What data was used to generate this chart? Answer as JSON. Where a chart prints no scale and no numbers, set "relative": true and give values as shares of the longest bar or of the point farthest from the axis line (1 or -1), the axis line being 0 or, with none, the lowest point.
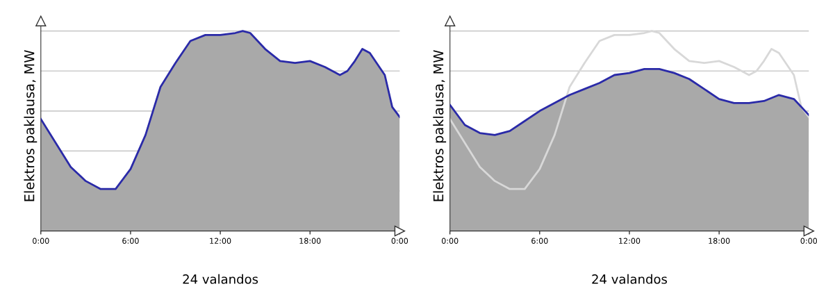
{
  "chart_data": [
    {
      "type": "area",
      "relative": true,
      "xlabel": "24 valandos",
      "ylabel": "Elektros paklausa, MW",
      "xlim": [
        0,
        24
      ],
      "xticks": [
        {
          "value": 0,
          "label": "0:00"
        },
        {
          "value": 6,
          "label": "6:00"
        },
        {
          "value": 12,
          "label": "12:00"
        },
        {
          "value": 18,
          "label": "18:00"
        },
        {
          "value": 24,
          "label": "0:00"
        }
      ],
      "grid": "y",
      "tick_labels": "x",
      "series": [
        {
          "color": "#2a2aa8",
          "x": [
            0,
            1,
            2,
            3,
            4,
            5,
            6,
            7,
            8,
            9,
            10,
            11,
            12,
            13,
            13.5,
            14,
            15,
            16,
            17,
            18,
            19,
            20,
            20.5,
            21,
            21.5,
            22,
            23,
            23.5,
            24
          ],
          "values": [
            0.56,
            0.44,
            0.32,
            0.25,
            0.21,
            0.21,
            0.31,
            0.48,
            0.72,
            0.84,
            0.95,
            0.98,
            0.98,
            0.99,
            1,
            0.99,
            0.91,
            0.85,
            0.84,
            0.85,
            0.82,
            0.78,
            0.8,
            0.85,
            0.91,
            0.89,
            0.78,
            0.62,
            0.57
          ]
        }
      ]
    },
    {
      "type": "area",
      "relative": true,
      "xlabel": "24 valandos",
      "ylabel": "Elektros paklausa, MW",
      "xlim": [
        0,
        24
      ],
      "xticks": [
        {
          "value": 0,
          "label": "0:00"
        },
        {
          "value": 6,
          "label": "6:00"
        },
        {
          "value": 12,
          "label": "12:00"
        },
        {
          "value": 18,
          "label": "18:00"
        },
        {
          "value": 24,
          "label": "0:00"
        }
      ],
      "grid": "y",
      "tick_labels": "x",
      "series": [
        {
          "color": "#2a2aa8",
          "x": [
            0,
            1,
            2,
            3,
            4,
            5,
            6,
            7,
            8,
            9,
            10,
            11,
            12,
            13,
            14,
            15,
            16,
            17,
            18,
            19,
            20,
            21,
            22,
            23,
            24
          ],
          "values": [
            0.63,
            0.53,
            0.49,
            0.48,
            0.5,
            0.55,
            0.6,
            0.64,
            0.68,
            0.71,
            0.74,
            0.78,
            0.79,
            0.81,
            0.81,
            0.79,
            0.76,
            0.71,
            0.66,
            0.64,
            0.64,
            0.65,
            0.68,
            0.66,
            0.58
          ]
        },
        {
          "type": "line",
          "color": "#d8d8d8",
          "x": [
            0,
            1,
            2,
            3,
            4,
            5,
            6,
            7,
            8,
            9,
            10,
            11,
            12,
            13,
            13.5,
            14,
            15,
            16,
            17,
            18,
            19,
            20,
            20.5,
            21,
            21.5,
            22,
            23,
            23.5,
            24
          ],
          "values": [
            0.56,
            0.44,
            0.32,
            0.25,
            0.21,
            0.21,
            0.31,
            0.48,
            0.72,
            0.84,
            0.95,
            0.98,
            0.98,
            0.99,
            1,
            0.99,
            0.91,
            0.85,
            0.84,
            0.85,
            0.82,
            0.78,
            0.8,
            0.85,
            0.91,
            0.89,
            0.78,
            0.62,
            0.57
          ]
        }
      ]
    }
  ]
}
